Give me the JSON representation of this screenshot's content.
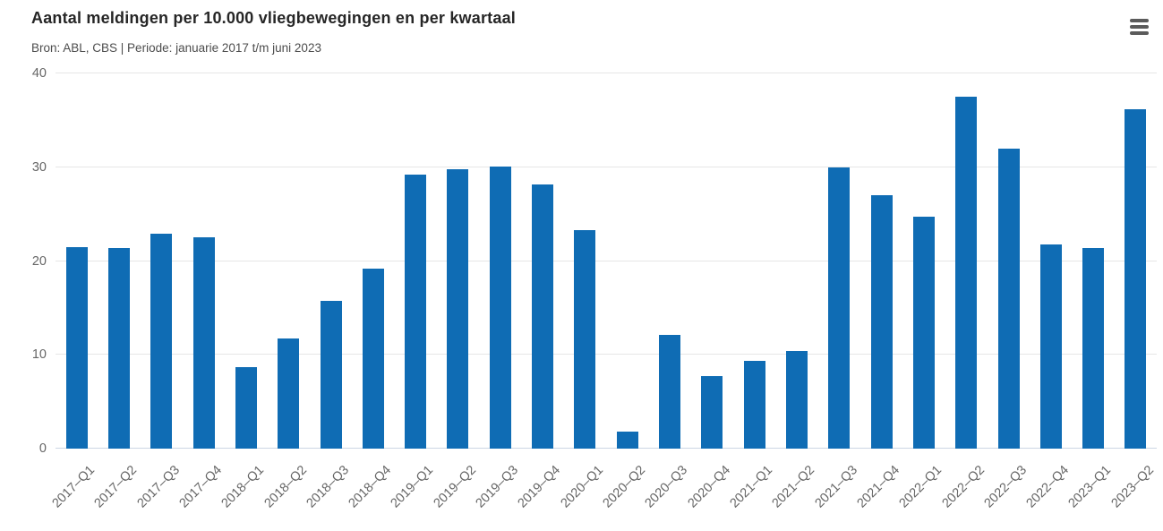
{
  "header": {
    "title": "Aantal meldingen per 10.000 vliegbewegingen en per kwartaal",
    "subtitle": "Bron: ABL, CBS | Periode: januarie 2017 t/m juni 2023",
    "menu_icon": "hamburger-menu-icon"
  },
  "chart_data": {
    "type": "bar",
    "title": "Aantal meldingen per 10.000 vliegbewegingen en per kwartaal",
    "subtitle": "Bron: ABL, CBS | Periode: januarie 2017 t/m juni 2023",
    "categories": [
      "2017–Q1",
      "2017–Q2",
      "2017–Q3",
      "2017–Q4",
      "2018–Q1",
      "2018–Q2",
      "2018–Q3",
      "2018–Q4",
      "2019–Q1",
      "2019–Q2",
      "2019–Q3",
      "2019–Q4",
      "2020–Q1",
      "2020–Q2",
      "2020–Q3",
      "2020–Q4",
      "2021–Q1",
      "2021–Q2",
      "2021–Q3",
      "2021–Q4",
      "2022–Q1",
      "2022–Q2",
      "2022–Q3",
      "2022–Q4",
      "2023–Q1",
      "2023–Q2"
    ],
    "values": [
      21.5,
      21.4,
      22.9,
      22.5,
      8.7,
      11.7,
      15.8,
      19.2,
      29.2,
      29.8,
      30.1,
      28.2,
      23.3,
      1.8,
      12.1,
      7.7,
      9.4,
      10.4,
      30.0,
      27.0,
      24.7,
      37.5,
      32.0,
      21.8,
      21.4,
      36.2
    ],
    "xlabel": "",
    "ylabel": "",
    "ylim": [
      0,
      40
    ],
    "yticks": [
      0,
      10,
      20,
      30,
      40
    ],
    "grid": true,
    "legend": "none",
    "bar_color": "#0f6cb4"
  },
  "colors": {
    "bar": "#0f6cb4",
    "gridline": "#e6e6e6",
    "baseline": "#ccd6e4",
    "title": "#262626",
    "subtitle": "#4d4d4d",
    "tick_label": "#666666"
  }
}
